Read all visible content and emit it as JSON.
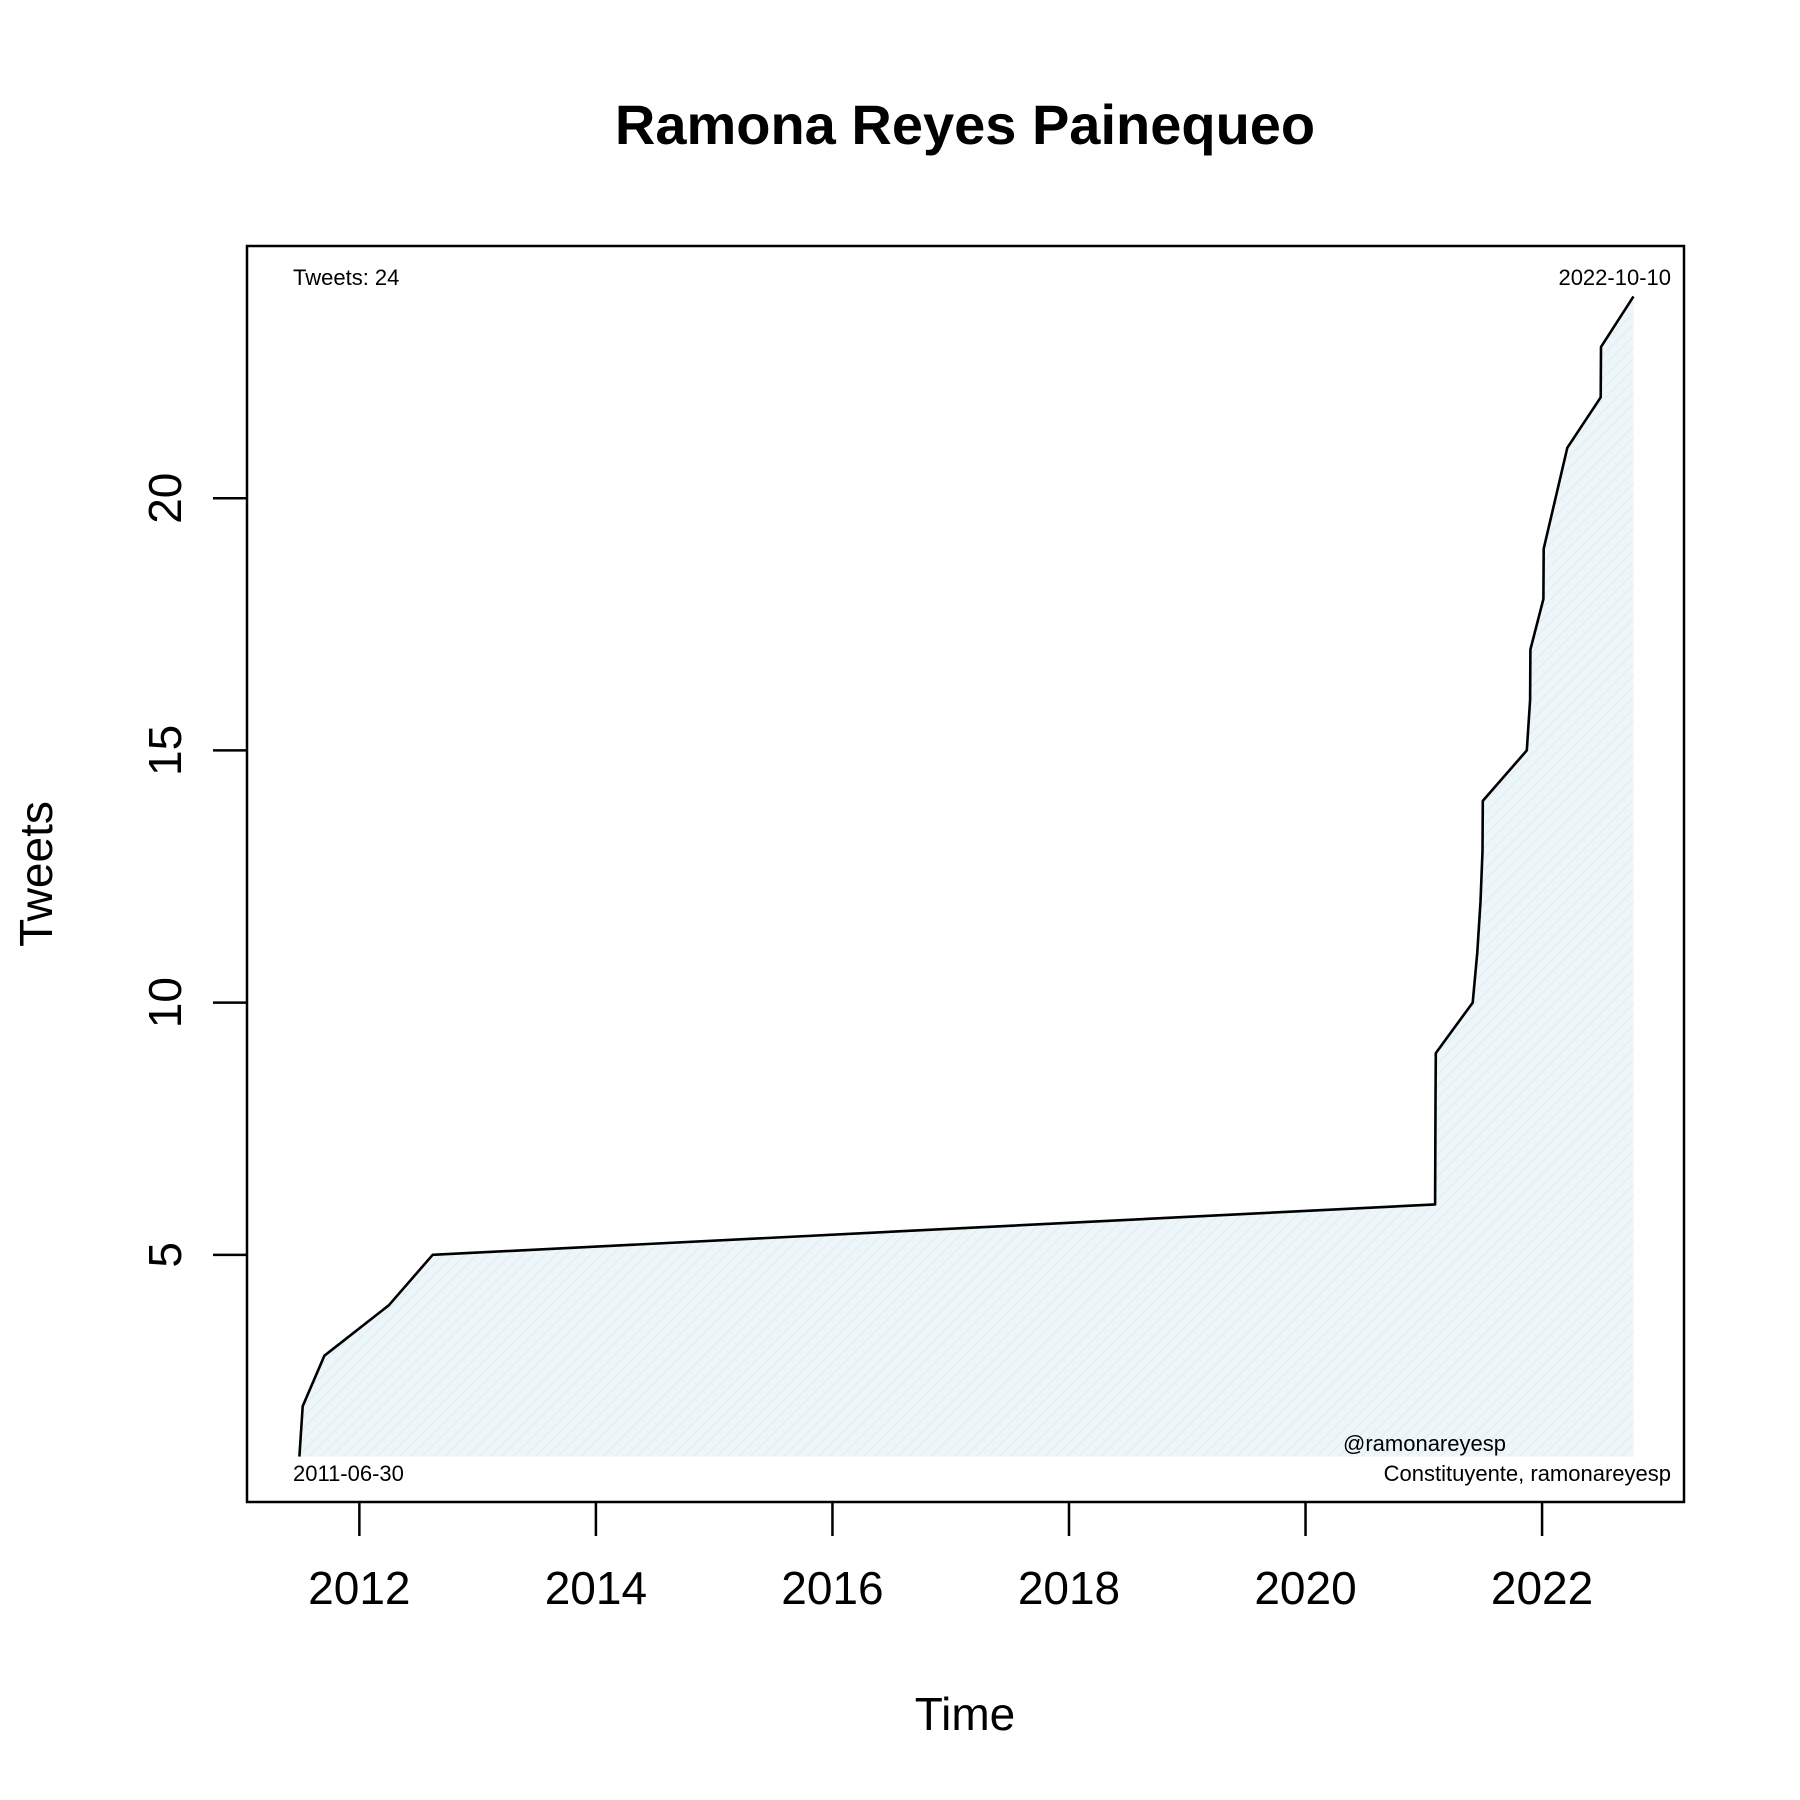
{
  "chart_data": {
    "type": "area",
    "title": "Ramona Reyes Painequeo",
    "xlabel": "Time",
    "ylabel": "Tweets",
    "xlim": [
      2011.05,
      2023.2
    ],
    "ylim": [
      0.1,
      25.0
    ],
    "xticks": [
      2012,
      2014,
      2016,
      2018,
      2020,
      2022
    ],
    "yticks": [
      5,
      10,
      15,
      20
    ],
    "grid": false,
    "legend": "none",
    "annotations": {
      "top_left": "Tweets: 24",
      "top_right": "2022-10-10",
      "bottom_left": "2011-06-30",
      "bottom_right_line1": "@ramonareyesp",
      "bottom_right_line2": "Constituyente, ramonareyesp"
    },
    "series": [
      {
        "x": [
          "2011-06-30",
          "2011-07-10",
          "2011-09-15",
          "2012-04-01",
          "2012-08-15",
          "2021-02-05",
          "2021-02-06",
          "2021-02-07",
          "2021-06-01",
          "2021-06-15",
          "2021-06-25",
          "2021-07-01",
          "2021-07-02",
          "2021-11-15",
          "2021-11-25",
          "2021-11-26",
          "2022-01-05",
          "2022-01-06",
          "2022-03-20",
          "2022-07-01",
          "2022-07-02",
          "2022-10-10"
        ],
        "y": [
          1,
          2,
          3,
          4,
          5,
          6,
          8,
          9,
          10,
          11,
          12,
          13,
          14,
          15,
          16,
          17,
          18,
          19,
          21,
          22,
          23,
          24
        ]
      }
    ],
    "colors": {
      "line": "#000000",
      "fill": "#eef6f9",
      "hatch": "#dbeef4"
    }
  }
}
